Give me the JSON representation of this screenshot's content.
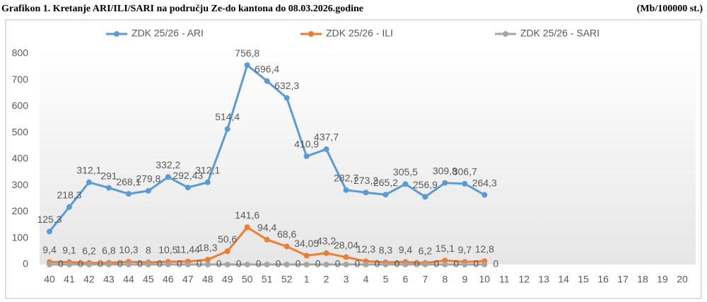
{
  "chart_data": {
    "type": "line",
    "title": "Grafikon 1. Kretanje ARI/ILI/SARI na području Ze-do kantona do 08.03.2026.godine",
    "subtitle": "(Mb/100000 st.)",
    "categories": [
      40,
      41,
      42,
      43,
      44,
      45,
      46,
      47,
      48,
      49,
      50,
      51,
      52,
      1,
      2,
      3,
      4,
      5,
      6,
      7,
      8,
      9,
      10,
      11,
      12,
      13,
      14,
      15,
      16,
      17,
      18,
      19,
      20
    ],
    "series": [
      {
        "name": "ZDK 25/26 - ARI",
        "color": "#5b9bd5",
        "values": [
          125.3,
          218.3,
          312.1,
          291,
          268.1,
          279.8,
          332.2,
          292.43,
          312.1,
          514.4,
          756.8,
          696.4,
          632.3,
          410.9,
          437.7,
          282.7,
          273.2,
          265.2,
          305.5,
          256.9,
          309.8,
          306.7,
          264.3,
          null,
          null,
          null,
          null,
          null,
          null,
          null,
          null,
          null,
          null
        ],
        "value_labels": [
          "125,3",
          "218,3",
          "312,1",
          "291",
          "268,1",
          "279,8",
          "332,2",
          "292,43",
          "312,1",
          "514,4",
          "756,8",
          "696,4",
          "632,3",
          "410,9",
          "437,7",
          "282,7",
          "273,2",
          "265,2",
          "305,5",
          "256,9",
          "309,8",
          "306,7",
          "264,3",
          null,
          null,
          null,
          null,
          null,
          null,
          null,
          null,
          null,
          null
        ]
      },
      {
        "name": "ZDK 25/26 - ILI",
        "color": "#ed7d31",
        "values": [
          9.4,
          9.1,
          6.2,
          6.8,
          10.3,
          8,
          10.5,
          11.44,
          18.3,
          50.6,
          141.6,
          94.4,
          68.6,
          34.05,
          43.2,
          28.04,
          12.3,
          8.3,
          9.4,
          6.2,
          15.1,
          9.7,
          12.8,
          null,
          null,
          null,
          null,
          null,
          null,
          null,
          null,
          null,
          null
        ],
        "value_labels": [
          "9,4",
          "9,1",
          "6,2",
          "6,8",
          "10,3",
          "8",
          "10,5",
          "11,44",
          "18,3",
          "50,6",
          "141,6",
          "94,4",
          "68,6",
          "34,05",
          "43,2",
          "28,04",
          "12,3",
          "8,3",
          "9,4",
          "6,2",
          "15,1",
          "9,7",
          "12,8",
          null,
          null,
          null,
          null,
          null,
          null,
          null,
          null,
          null,
          null
        ]
      },
      {
        "name": "ZDK 25/26 - SARI",
        "color": "#a5a5a5",
        "values": [
          0,
          0,
          0,
          0,
          0,
          0,
          0,
          0,
          0,
          0,
          0,
          0,
          0,
          0,
          0,
          0,
          0,
          0,
          0,
          0,
          0,
          0,
          0,
          null,
          null,
          null,
          null,
          null,
          null,
          null,
          null,
          null,
          null
        ]
      }
    ],
    "ylim": [
      0,
      800
    ],
    "yticks": [
      0,
      100,
      200,
      300,
      400,
      500,
      600,
      700,
      800
    ],
    "grid": false,
    "legend": "top"
  }
}
